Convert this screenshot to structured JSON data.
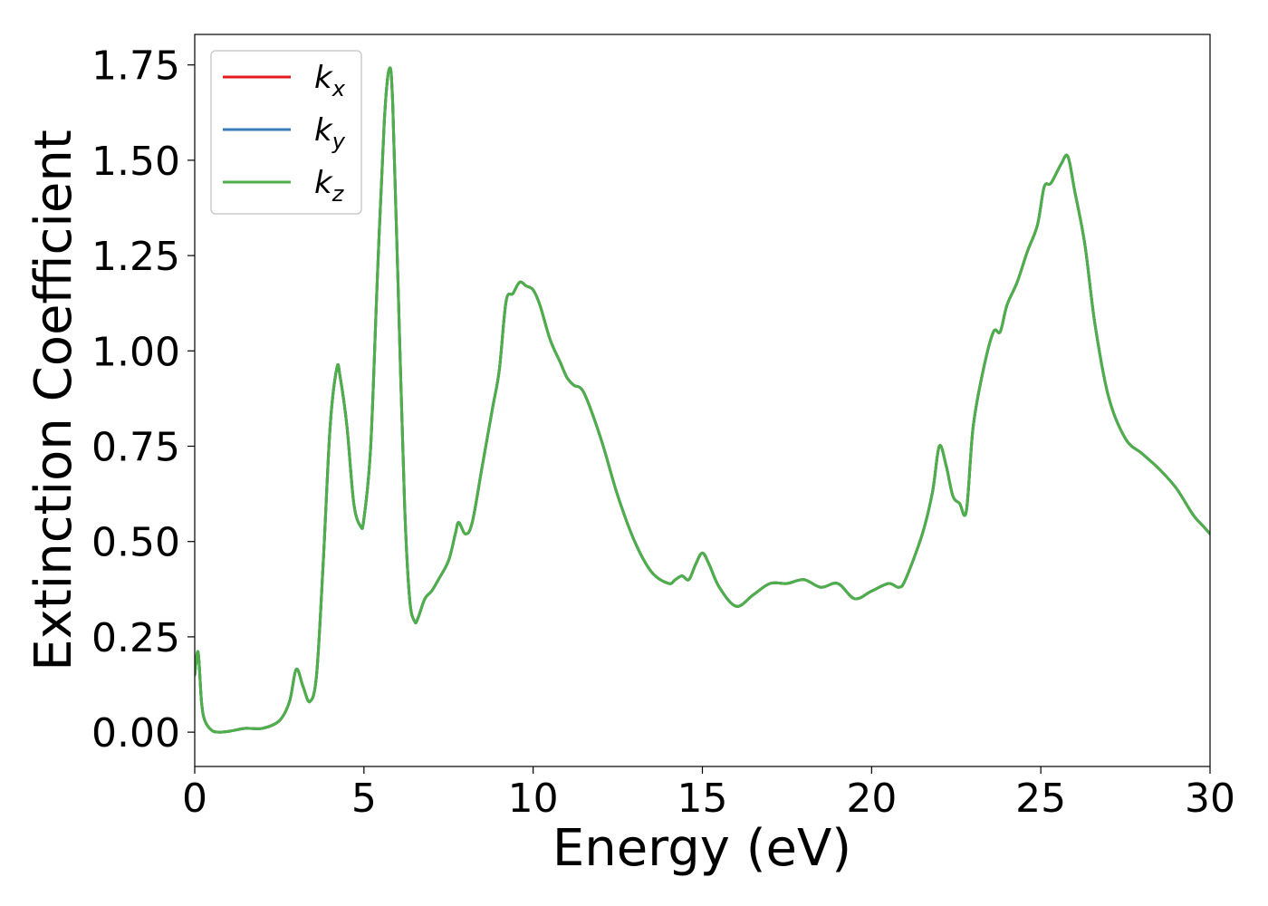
{
  "chart_data": {
    "type": "line",
    "xlabel": "Energy (eV)",
    "ylabel": "Extinction Coefficient",
    "xlim": [
      0,
      30
    ],
    "ylim": [
      -0.09,
      1.83
    ],
    "xticks": [
      0,
      5,
      10,
      15,
      20,
      25,
      30
    ],
    "xtick_labels": [
      "0",
      "5",
      "10",
      "15",
      "20",
      "25",
      "30"
    ],
    "yticks": [
      0,
      0.25,
      0.5,
      0.75,
      1.0,
      1.25,
      1.5,
      1.75
    ],
    "ytick_labels": [
      "0.00",
      "0.25",
      "0.50",
      "0.75",
      "1.00",
      "1.25",
      "1.50",
      "1.75"
    ],
    "grid": false,
    "legend_position": "top-left",
    "x": [
      0.0,
      0.1,
      0.2,
      0.3,
      0.5,
      0.7,
      1.0,
      1.5,
      2.0,
      2.5,
      2.8,
      3.0,
      3.2,
      3.4,
      3.6,
      3.8,
      4.0,
      4.2,
      4.3,
      4.5,
      4.7,
      4.9,
      5.0,
      5.2,
      5.4,
      5.6,
      5.75,
      5.85,
      6.0,
      6.2,
      6.35,
      6.5,
      6.6,
      6.8,
      7.0,
      7.2,
      7.5,
      7.7,
      7.8,
      8.0,
      8.2,
      8.5,
      8.8,
      9.0,
      9.2,
      9.4,
      9.6,
      9.8,
      10.0,
      10.2,
      10.5,
      10.8,
      11.0,
      11.2,
      11.5,
      12.0,
      12.5,
      13.0,
      13.5,
      14.0,
      14.2,
      14.4,
      14.6,
      14.8,
      15.0,
      15.2,
      15.5,
      16.0,
      16.5,
      17.0,
      17.5,
      18.0,
      18.5,
      19.0,
      19.5,
      20.0,
      20.5,
      20.8,
      21.0,
      21.5,
      21.8,
      22.0,
      22.2,
      22.4,
      22.6,
      22.8,
      23.0,
      23.3,
      23.6,
      23.8,
      24.0,
      24.3,
      24.6,
      24.9,
      25.1,
      25.3,
      25.6,
      25.8,
      26.0,
      26.3,
      26.6,
      27.0,
      27.5,
      28.0,
      28.5,
      29.0,
      29.5,
      29.8,
      30.0
    ],
    "series": [
      {
        "name": "k_x",
        "color": "#e41a1c",
        "y": [
          0.15,
          0.21,
          0.08,
          0.03,
          0.005,
          0.0,
          0.002,
          0.01,
          0.01,
          0.03,
          0.08,
          0.165,
          0.12,
          0.08,
          0.15,
          0.45,
          0.8,
          0.955,
          0.93,
          0.8,
          0.6,
          0.54,
          0.56,
          0.75,
          1.2,
          1.6,
          1.74,
          1.65,
          1.2,
          0.6,
          0.35,
          0.29,
          0.3,
          0.35,
          0.37,
          0.4,
          0.45,
          0.52,
          0.55,
          0.52,
          0.55,
          0.7,
          0.85,
          0.95,
          1.13,
          1.15,
          1.18,
          1.17,
          1.16,
          1.12,
          1.03,
          0.97,
          0.93,
          0.91,
          0.89,
          0.77,
          0.62,
          0.5,
          0.42,
          0.39,
          0.4,
          0.41,
          0.4,
          0.44,
          0.47,
          0.44,
          0.38,
          0.33,
          0.36,
          0.39,
          0.39,
          0.4,
          0.38,
          0.39,
          0.35,
          0.37,
          0.39,
          0.38,
          0.4,
          0.52,
          0.63,
          0.75,
          0.7,
          0.62,
          0.6,
          0.58,
          0.8,
          0.95,
          1.05,
          1.05,
          1.12,
          1.18,
          1.26,
          1.33,
          1.43,
          1.44,
          1.49,
          1.51,
          1.42,
          1.28,
          1.07,
          0.88,
          0.77,
          0.73,
          0.69,
          0.64,
          0.57,
          0.54,
          0.52
        ]
      },
      {
        "name": "k_y",
        "color": "#377eb8",
        "y": [
          0.15,
          0.21,
          0.08,
          0.03,
          0.005,
          0.0,
          0.002,
          0.01,
          0.01,
          0.03,
          0.08,
          0.165,
          0.12,
          0.08,
          0.15,
          0.45,
          0.8,
          0.955,
          0.93,
          0.8,
          0.6,
          0.54,
          0.56,
          0.75,
          1.2,
          1.6,
          1.74,
          1.65,
          1.2,
          0.6,
          0.35,
          0.29,
          0.3,
          0.35,
          0.37,
          0.4,
          0.45,
          0.52,
          0.55,
          0.52,
          0.55,
          0.7,
          0.85,
          0.95,
          1.13,
          1.15,
          1.18,
          1.17,
          1.16,
          1.12,
          1.03,
          0.97,
          0.93,
          0.91,
          0.89,
          0.77,
          0.62,
          0.5,
          0.42,
          0.39,
          0.4,
          0.41,
          0.4,
          0.44,
          0.47,
          0.44,
          0.38,
          0.33,
          0.36,
          0.39,
          0.39,
          0.4,
          0.38,
          0.39,
          0.35,
          0.37,
          0.39,
          0.38,
          0.4,
          0.52,
          0.63,
          0.75,
          0.7,
          0.62,
          0.6,
          0.58,
          0.8,
          0.95,
          1.05,
          1.05,
          1.12,
          1.18,
          1.26,
          1.33,
          1.43,
          1.44,
          1.49,
          1.51,
          1.42,
          1.28,
          1.07,
          0.88,
          0.77,
          0.73,
          0.69,
          0.64,
          0.57,
          0.54,
          0.52
        ]
      },
      {
        "name": "k_z",
        "color": "#4daf4a",
        "y": [
          0.15,
          0.21,
          0.08,
          0.03,
          0.005,
          0.0,
          0.002,
          0.01,
          0.01,
          0.03,
          0.08,
          0.165,
          0.12,
          0.08,
          0.15,
          0.45,
          0.8,
          0.955,
          0.93,
          0.8,
          0.6,
          0.54,
          0.56,
          0.75,
          1.2,
          1.6,
          1.74,
          1.65,
          1.2,
          0.6,
          0.35,
          0.29,
          0.3,
          0.35,
          0.37,
          0.4,
          0.45,
          0.52,
          0.55,
          0.52,
          0.55,
          0.7,
          0.85,
          0.95,
          1.13,
          1.15,
          1.18,
          1.17,
          1.16,
          1.12,
          1.03,
          0.97,
          0.93,
          0.91,
          0.89,
          0.77,
          0.62,
          0.5,
          0.42,
          0.39,
          0.4,
          0.41,
          0.4,
          0.44,
          0.47,
          0.44,
          0.38,
          0.33,
          0.36,
          0.39,
          0.39,
          0.4,
          0.38,
          0.39,
          0.35,
          0.37,
          0.39,
          0.38,
          0.4,
          0.52,
          0.63,
          0.75,
          0.7,
          0.62,
          0.6,
          0.58,
          0.8,
          0.95,
          1.05,
          1.05,
          1.12,
          1.18,
          1.26,
          1.33,
          1.43,
          1.44,
          1.49,
          1.51,
          1.42,
          1.28,
          1.07,
          0.88,
          0.77,
          0.73,
          0.69,
          0.64,
          0.57,
          0.54,
          0.52
        ]
      }
    ],
    "legend": [
      {
        "base": "k",
        "sub": "x",
        "color": "#e41a1c"
      },
      {
        "base": "k",
        "sub": "y",
        "color": "#377eb8"
      },
      {
        "base": "k",
        "sub": "z",
        "color": "#4daf4a"
      }
    ]
  }
}
